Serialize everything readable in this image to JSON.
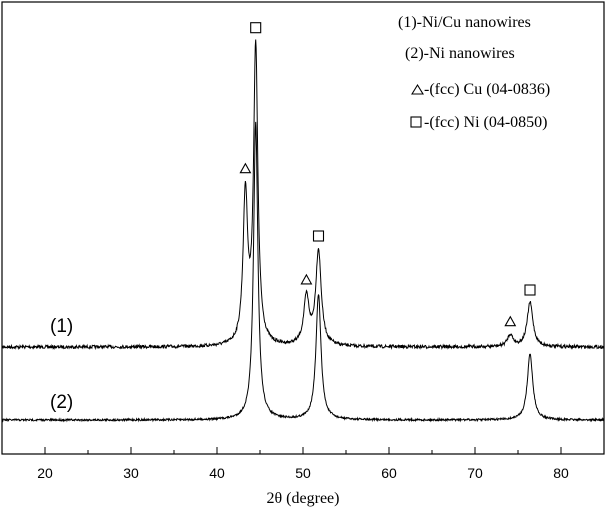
{
  "chart_data": {
    "type": "line",
    "xlabel": "2θ (degree)",
    "ylabel": "",
    "xlim": [
      15,
      85
    ],
    "xticks": [
      20,
      30,
      40,
      50,
      60,
      70,
      80
    ],
    "grid": false,
    "legend_placement": "top-right",
    "legend": [
      "(1)-Ni/Cu nanowires",
      "(2)-Ni nanowires",
      "-(fcc) Cu (04-0836)",
      "-(fcc) Ni (04-0850)"
    ],
    "legend_markers": [
      "",
      "",
      "triangle",
      "square"
    ],
    "series": [
      {
        "name": "(1)",
        "baseline": 0.0,
        "peaks": [
          {
            "x": 43.3,
            "height": 0.5,
            "width": 0.32
          },
          {
            "x": 44.5,
            "height": 1.0,
            "width": 0.3
          },
          {
            "x": 50.4,
            "height": 0.16,
            "width": 0.38
          },
          {
            "x": 51.8,
            "height": 0.32,
            "width": 0.38
          },
          {
            "x": 74.1,
            "height": 0.04,
            "width": 0.4
          },
          {
            "x": 76.4,
            "height": 0.15,
            "width": 0.4
          }
        ]
      },
      {
        "name": "(2)",
        "baseline": 0.0,
        "peaks": [
          {
            "x": 44.5,
            "height": 0.9,
            "width": 0.3
          },
          {
            "x": 51.8,
            "height": 0.38,
            "width": 0.35
          },
          {
            "x": 76.4,
            "height": 0.2,
            "width": 0.38
          }
        ]
      }
    ],
    "peak_markers": [
      {
        "x": 43.3,
        "symbol": "triangle",
        "series": "(1)"
      },
      {
        "x": 44.5,
        "symbol": "square",
        "series": "(1)"
      },
      {
        "x": 50.4,
        "symbol": "triangle",
        "series": "(1)"
      },
      {
        "x": 51.8,
        "symbol": "square",
        "series": "(1)"
      },
      {
        "x": 74.1,
        "symbol": "triangle",
        "series": "(1)"
      },
      {
        "x": 76.4,
        "symbol": "square",
        "series": "(1)"
      }
    ],
    "line_color": "#000000"
  }
}
